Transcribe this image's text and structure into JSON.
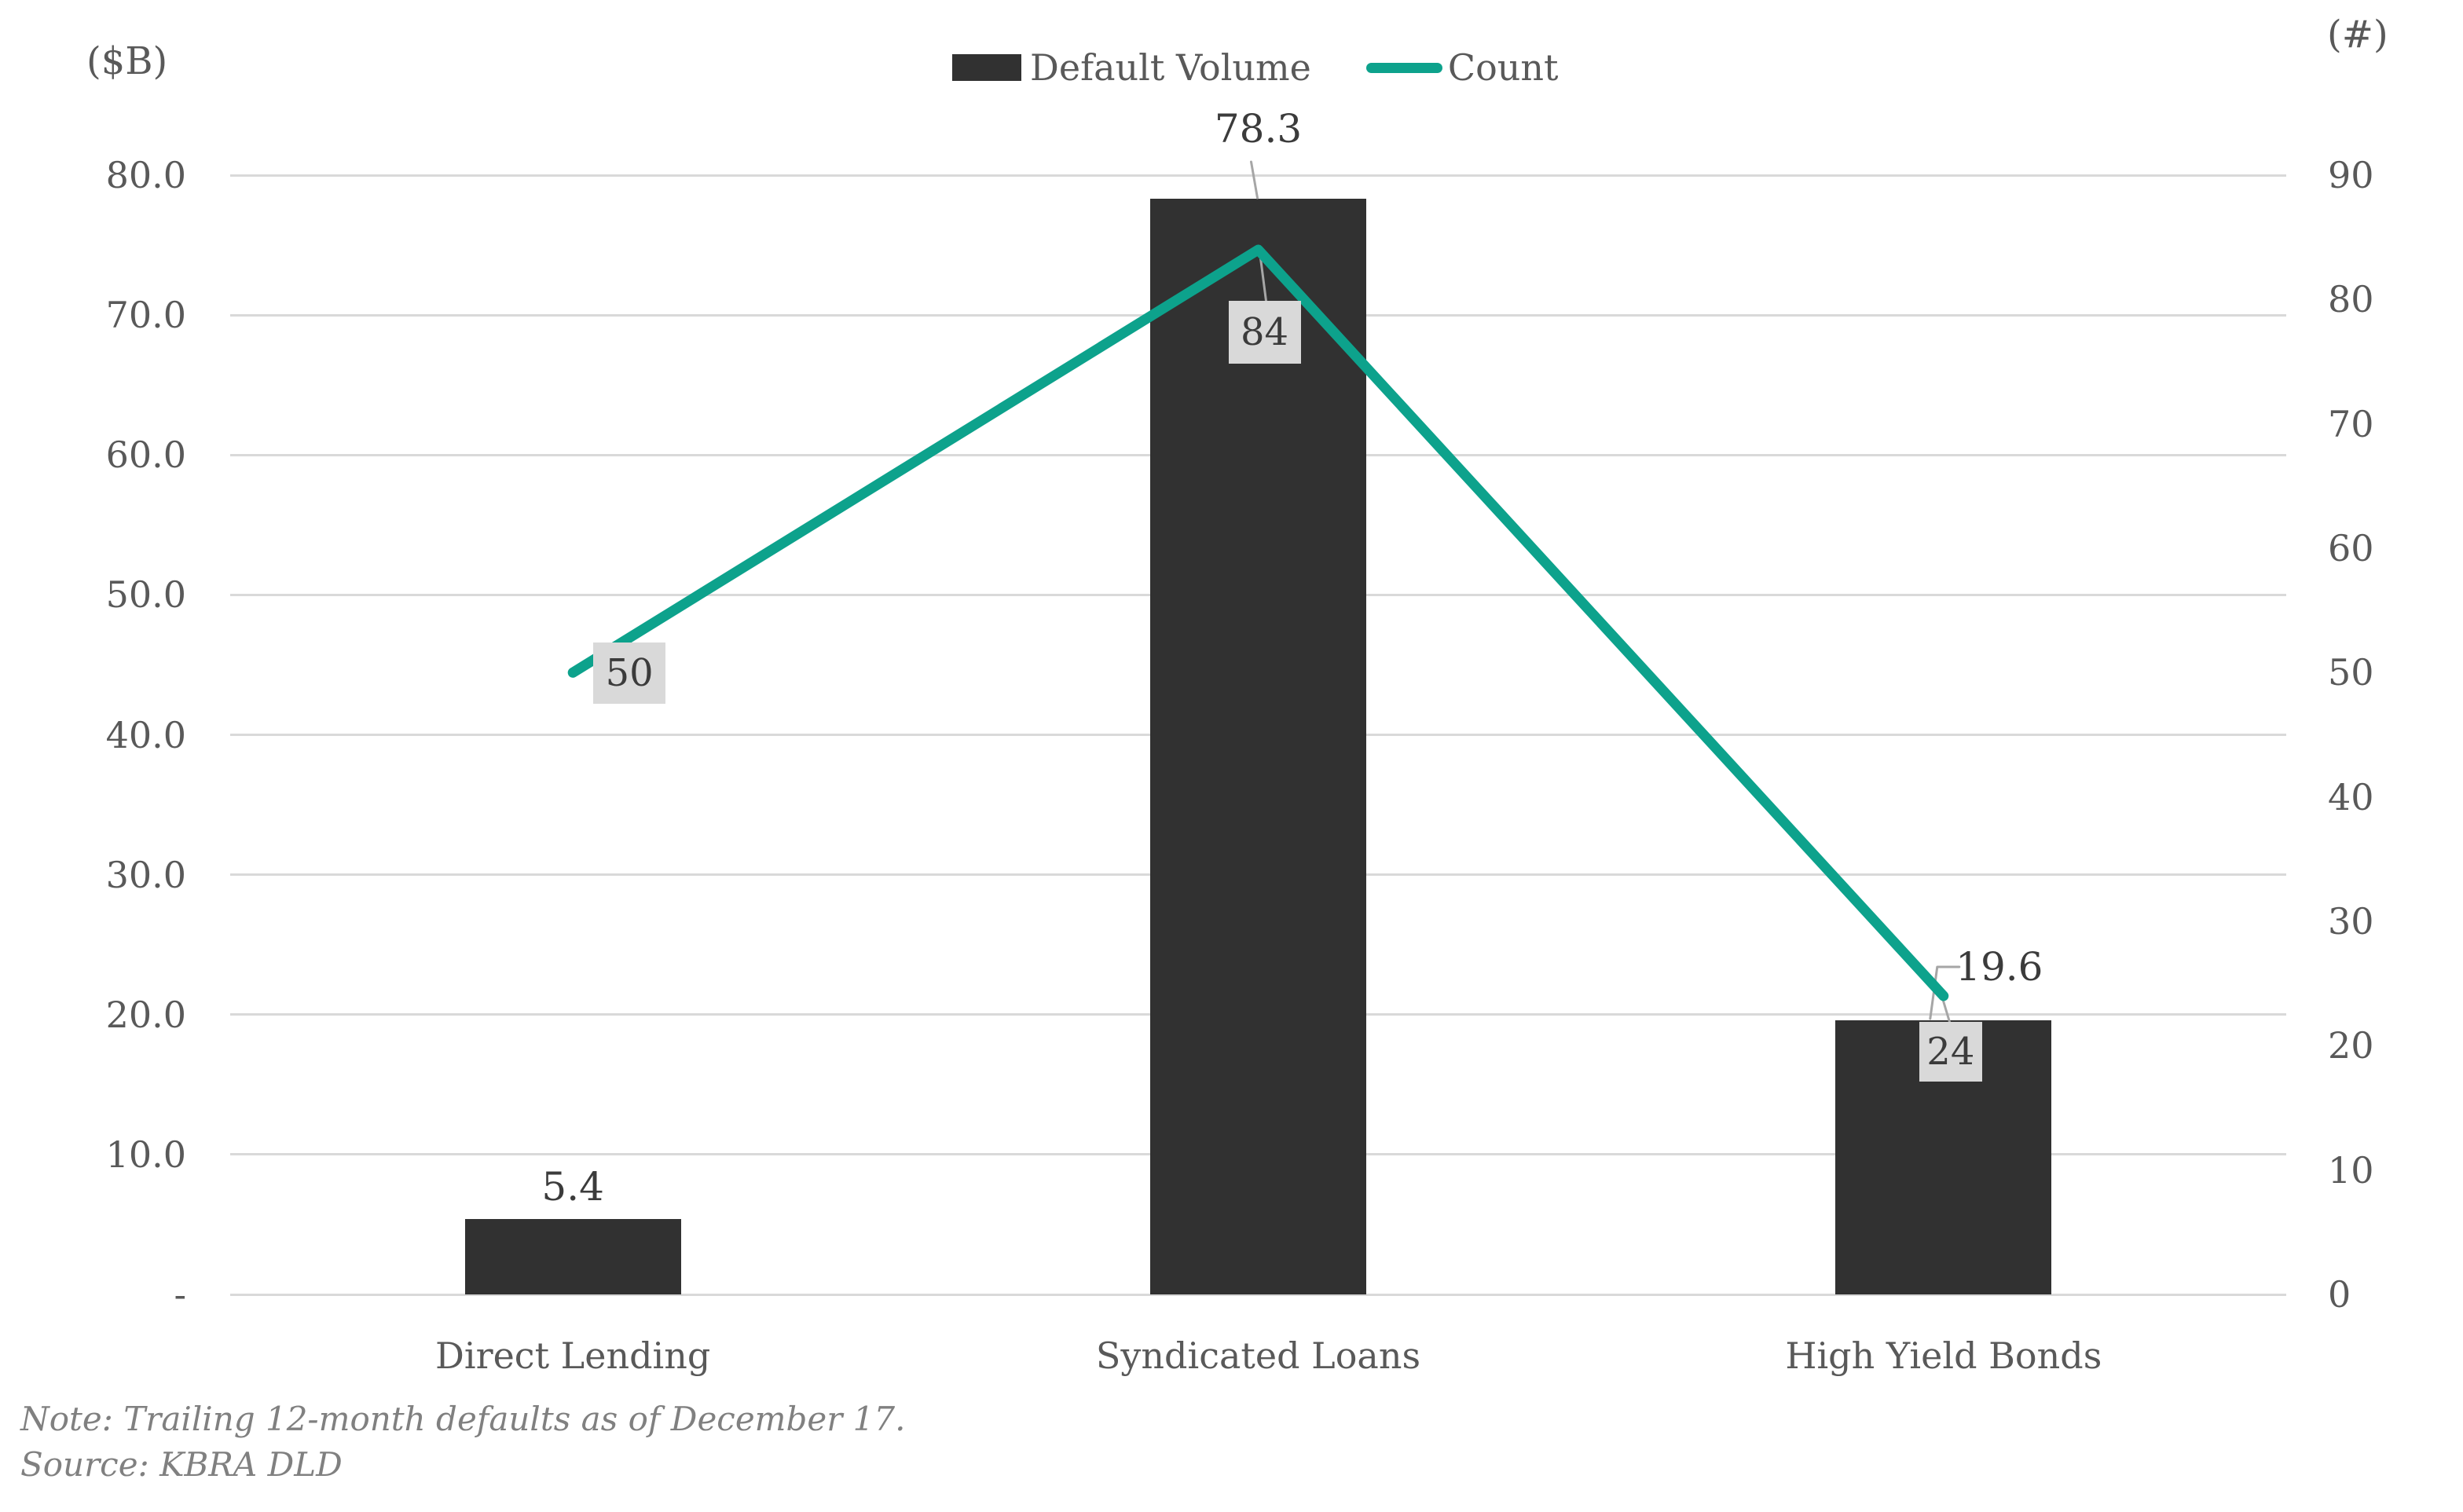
{
  "chart_data": {
    "type": "combo",
    "title": "",
    "categories": [
      "Direct Lending",
      "Syndicated Loans",
      "High Yield Bonds"
    ],
    "series": [
      {
        "name": "Default Volume",
        "type": "bar",
        "axis": "left",
        "values": [
          5.4,
          78.3,
          19.6
        ],
        "labels": [
          "5.4",
          "78.3",
          "19.6"
        ],
        "color": "#313131"
      },
      {
        "name": "Count",
        "type": "line",
        "axis": "right",
        "values": [
          50,
          84,
          24
        ],
        "labels": [
          "50",
          "84",
          "24"
        ],
        "color": "#0DA28C"
      }
    ],
    "left_axis": {
      "unit": "($B)",
      "min": 0,
      "max": 80,
      "tick_step": 10,
      "tick_labels": [
        "-",
        "10.0",
        "20.0",
        "30.0",
        "40.0",
        "50.0",
        "60.0",
        "70.0",
        "80.0"
      ]
    },
    "right_axis": {
      "unit": "(#)",
      "min": 0,
      "max": 90,
      "tick_step": 10,
      "tick_labels": [
        "0",
        "10",
        "20",
        "30",
        "40",
        "50",
        "60",
        "70",
        "80",
        "90"
      ]
    },
    "grid": true,
    "legend_position": "top-center"
  },
  "legend": {
    "items": [
      {
        "label": "Default Volume",
        "marker": "bar-swatch",
        "color": "#313131"
      },
      {
        "label": "Count",
        "marker": "line-swatch",
        "color": "#0DA28C"
      }
    ]
  },
  "footer": {
    "note": "Note: Trailing 12-month defaults as of December 17.",
    "source": "Source: KBRA DLD"
  },
  "colors": {
    "background": "#FFFFFF",
    "bar": "#313131",
    "line": "#0DA28C",
    "gridline": "#D9D9D9",
    "leader": "#A6A6A6",
    "label_box_bg": "#D9D9D9",
    "axis_text": "#595959",
    "data_label_text": "#3B3B3B",
    "note_text": "#808080"
  }
}
